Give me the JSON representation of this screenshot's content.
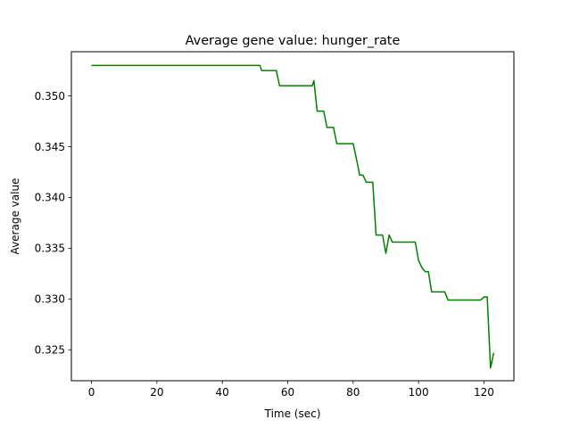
{
  "chart_data": {
    "type": "line",
    "title": "Average gene value: hunger_rate",
    "xlabel": "Time (sec)",
    "ylabel": "Average value",
    "xlim": [
      -6.15,
      129.15
    ],
    "ylim": [
      0.32195,
      0.35435
    ],
    "xticks": [
      0,
      20,
      40,
      60,
      80,
      100,
      120
    ],
    "xtick_labels": [
      "0",
      "20",
      "40",
      "60",
      "80",
      "100",
      "120"
    ],
    "yticks": [
      0.325,
      0.33,
      0.335,
      0.34,
      0.345,
      0.35
    ],
    "ytick_labels": [
      "0.325",
      "0.330",
      "0.335",
      "0.340",
      "0.345",
      "0.350"
    ],
    "grid": false,
    "series": [
      {
        "color": "#008000",
        "x": [
          0,
          51.5,
          52,
          56.5,
          57.5,
          67.5,
          68,
          69,
          71,
          72,
          74,
          75,
          80,
          81,
          82,
          83,
          84,
          86,
          87,
          89,
          90,
          91,
          92,
          99,
          100,
          101,
          102,
          103,
          104,
          108,
          109,
          119,
          120,
          121,
          122,
          123
        ],
        "y": [
          0.353,
          0.353,
          0.3525,
          0.3525,
          0.351,
          0.351,
          0.3515,
          0.3485,
          0.3485,
          0.3469,
          0.3469,
          0.3453,
          0.3453,
          0.3438,
          0.3422,
          0.3422,
          0.3415,
          0.3415,
          0.3363,
          0.3363,
          0.3345,
          0.3363,
          0.3356,
          0.3356,
          0.3338,
          0.3331,
          0.3327,
          0.3327,
          0.3307,
          0.3307,
          0.3299,
          0.3299,
          0.3302,
          0.3302,
          0.3232,
          0.3247
        ]
      }
    ]
  }
}
